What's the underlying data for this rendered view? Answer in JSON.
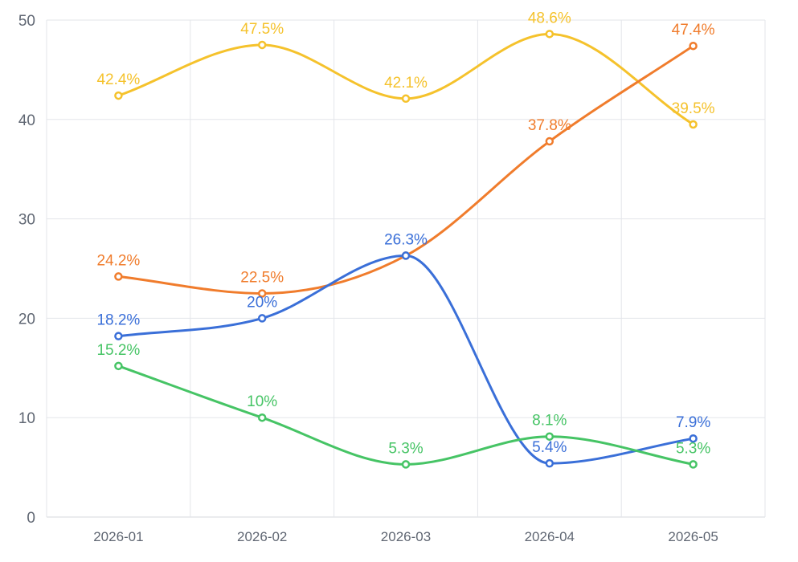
{
  "chart_data": {
    "type": "line",
    "categories": [
      "2026-01",
      "2026-02",
      "2026-03",
      "2026-04",
      "2026-05"
    ],
    "ylim": [
      0,
      50
    ],
    "yticks": [
      "0",
      "10",
      "20",
      "30",
      "40",
      "50"
    ],
    "grid": true,
    "smooth": true,
    "series": [
      {
        "color": "#f5c22c",
        "values": [
          42.4,
          47.5,
          42.1,
          48.6,
          39.5
        ],
        "labels": [
          "42.4%",
          "47.5%",
          "42.1%",
          "48.6%",
          "39.5%"
        ]
      },
      {
        "color": "#f07c2c",
        "values": [
          24.2,
          22.5,
          26.3,
          37.8,
          47.4
        ],
        "labels": [
          "24.2%",
          "22.5%",
          "",
          "37.8%",
          "47.4%"
        ]
      },
      {
        "color": "#3a6fd8",
        "values": [
          18.2,
          20,
          26.3,
          5.4,
          7.9
        ],
        "labels": [
          "18.2%",
          "20%",
          "26.3%",
          "5.4%",
          "7.9%"
        ]
      },
      {
        "color": "#46c465",
        "values": [
          15.2,
          10,
          5.3,
          8.1,
          5.3
        ],
        "labels": [
          "15.2%",
          "10%",
          "5.3%",
          "8.1%",
          "5.3%"
        ]
      }
    ]
  }
}
